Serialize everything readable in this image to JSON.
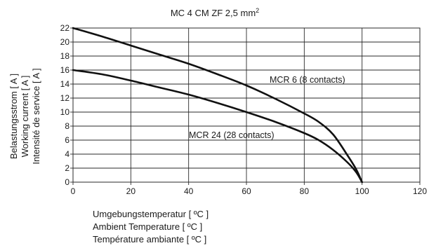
{
  "chart_data": {
    "type": "line",
    "title": {
      "main": "MC 4 CM ZF 2,5 mm",
      "sup": "2"
    },
    "xlabel": [
      "Umgebungstemperatur [ ºC ]",
      "Ambient Temperature [ ºC ]",
      "Température ambiante [ ºC ]"
    ],
    "ylabel": [
      "Belastungsstrom [ A ]",
      "Working current [ A ]",
      "Intensité de service [ A ]"
    ],
    "xlim": [
      0,
      120
    ],
    "ylim": [
      0,
      22
    ],
    "xticks": [
      "0",
      "20",
      "40",
      "60",
      "80",
      "100",
      "120"
    ],
    "yticks": [
      "0",
      "2",
      "4",
      "6",
      "8",
      "10",
      "12",
      "14",
      "16",
      "18",
      "20",
      "22"
    ],
    "grid": true,
    "series": [
      {
        "name": "MCR 6 (8 contacts)",
        "x": [
          0,
          10,
          20,
          30,
          40,
          50,
          60,
          70,
          80,
          85,
          90,
          95,
          98,
          100
        ],
        "y": [
          22,
          20.8,
          19.5,
          18.2,
          16.9,
          15.4,
          13.8,
          11.9,
          9.8,
          8.6,
          6.8,
          3.8,
          1.8,
          0
        ]
      },
      {
        "name": "MCR 24 (28 contacts)",
        "x": [
          0,
          10,
          20,
          30,
          40,
          50,
          60,
          70,
          80,
          85,
          90,
          95,
          98,
          100
        ],
        "y": [
          16,
          15.4,
          14.5,
          13.5,
          12.5,
          11.3,
          10.0,
          8.6,
          7.0,
          6.0,
          4.6,
          2.8,
          1.4,
          0
        ]
      }
    ]
  }
}
